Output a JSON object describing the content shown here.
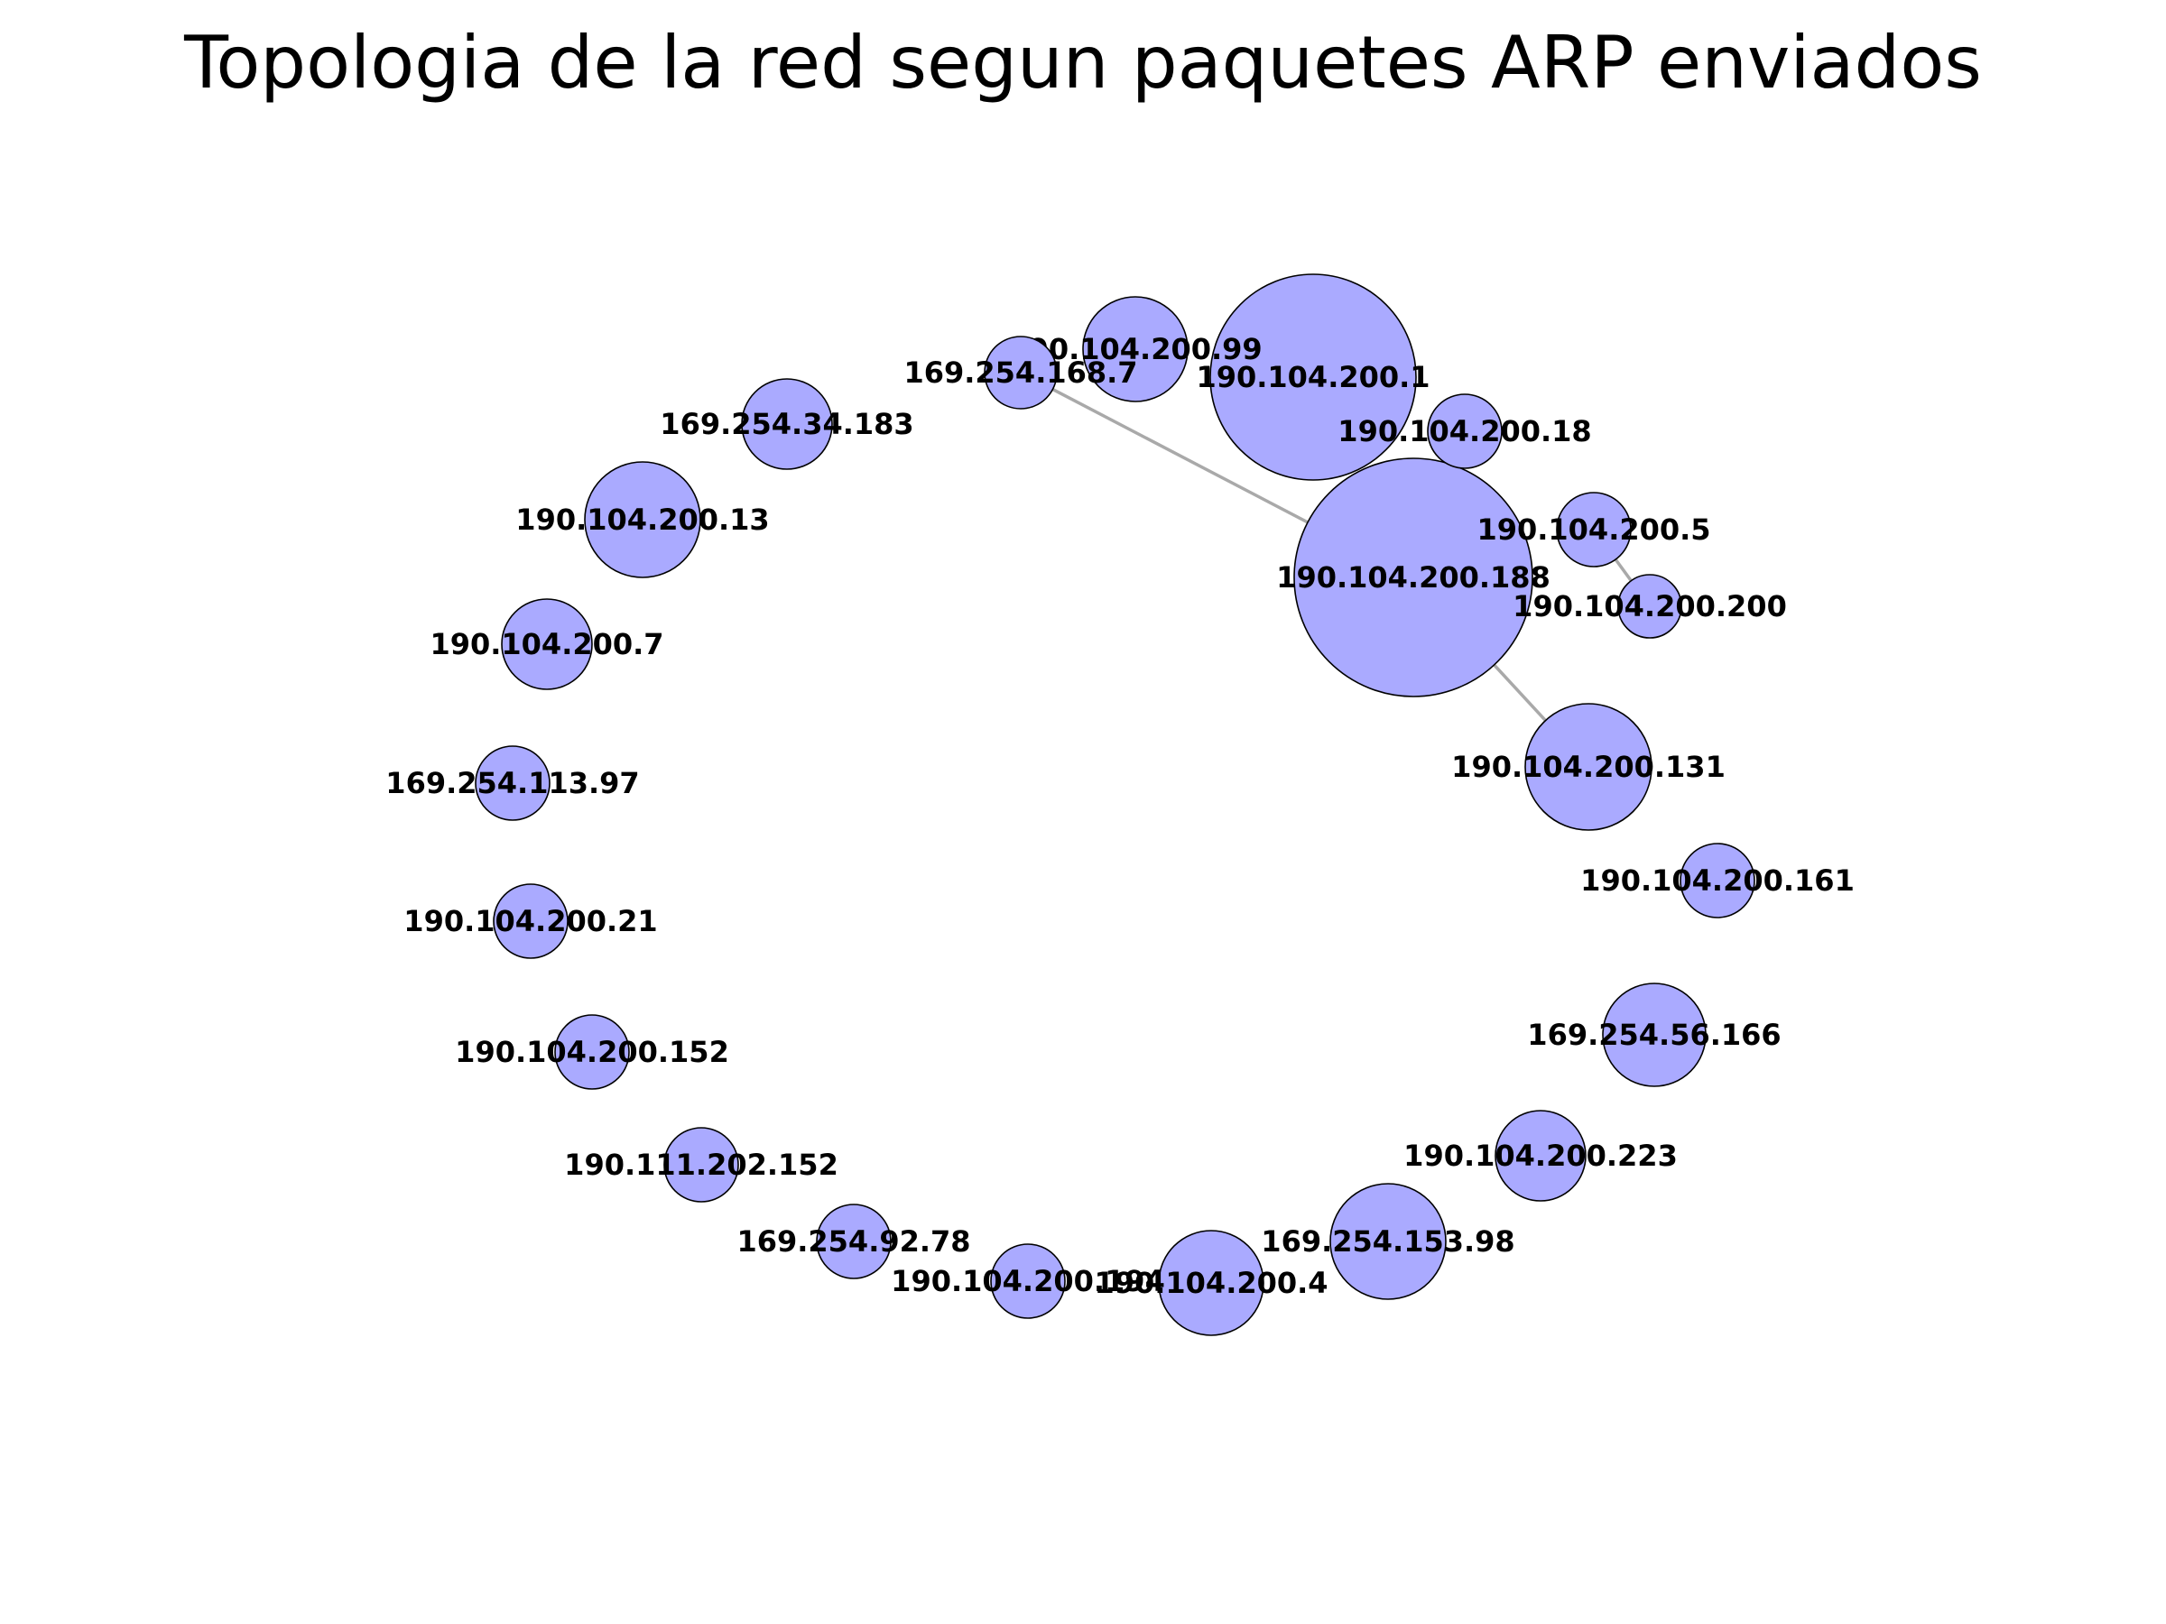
{
  "title": "Topologia de la red segun paquetes ARP enviados",
  "colors": {
    "node_fill": "#aaaaff",
    "node_stroke": "#000000",
    "edge": "#a9a9a9"
  },
  "nodes": [
    {
      "id": "190.104.200.1"
    },
    {
      "id": "190.104.200.188"
    },
    {
      "id": "190.104.200.99"
    },
    {
      "id": "169.254.168.7"
    },
    {
      "id": "190.104.200.18"
    },
    {
      "id": "190.104.200.5"
    },
    {
      "id": "190.104.200.200"
    },
    {
      "id": "190.104.200.131"
    },
    {
      "id": "190.104.200.161"
    },
    {
      "id": "169.254.56.166"
    },
    {
      "id": "190.104.200.223"
    },
    {
      "id": "169.254.153.98"
    },
    {
      "id": "190.104.200.4"
    },
    {
      "id": "190.104.200.194"
    },
    {
      "id": "169.254.92.78"
    },
    {
      "id": "190.111.202.152"
    },
    {
      "id": "190.104.200.152"
    },
    {
      "id": "190.104.200.21"
    },
    {
      "id": "169.254.113.97"
    },
    {
      "id": "190.104.200.7"
    },
    {
      "id": "190.104.200.13"
    },
    {
      "id": "169.254.34.183"
    }
  ],
  "edges": [
    {
      "source": "169.254.168.7",
      "target": "190.104.200.188"
    },
    {
      "source": "190.104.200.18",
      "target": "190.104.200.188"
    },
    {
      "source": "190.104.200.5",
      "target": "190.104.200.200"
    },
    {
      "source": "190.104.200.188",
      "target": "190.104.200.131"
    }
  ]
}
